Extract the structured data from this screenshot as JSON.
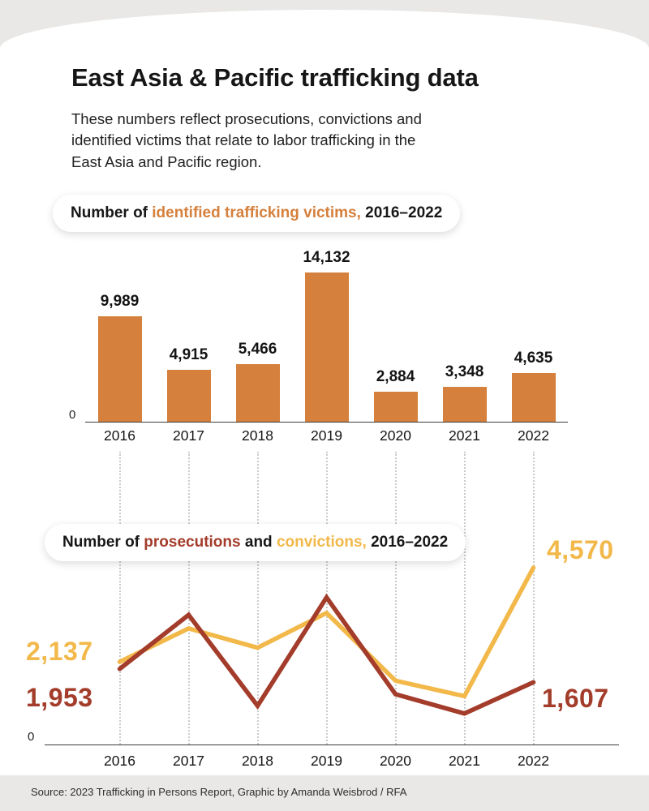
{
  "page": {
    "title": "East Asia & Pacific trafficking data",
    "subtitle_lines": [
      "These numbers reflect prosecutions, convictions and",
      "identified victims that relate to labor trafficking in the",
      "East Asia and Pacific region."
    ],
    "footer": "Source: 2023 Trafficking in Persons Report, Graphic by Amanda Weisbrod / RFA"
  },
  "colors": {
    "background_gray": "#e9e8e6",
    "card_white": "#ffffff",
    "bar_orange": "#d5803c",
    "prosecutions_red": "#a33c2a",
    "convictions_yellow": "#f2b84a",
    "dotted_gridline": "#cbcbcb",
    "text_dark": "#161616"
  },
  "bar_chart_heading": {
    "prefix": "Number of ",
    "highlight": "identified trafficking victims,",
    "suffix": " 2016–2022"
  },
  "line_chart_heading": {
    "prefix": "Number of ",
    "highlight_prosecutions": "prosecutions",
    "middle": " and ",
    "highlight_convictions": "convictions,",
    "suffix": " 2016–2022"
  },
  "chart_data": [
    {
      "type": "bar",
      "title": "Number of identified trafficking victims, 2016–2022",
      "categories": [
        "2016",
        "2017",
        "2018",
        "2019",
        "2020",
        "2021",
        "2022"
      ],
      "values": [
        9989,
        4915,
        5466,
        14132,
        2884,
        3348,
        4635
      ],
      "value_labels": [
        "9,989",
        "4,915",
        "5,466",
        "14,132",
        "2,884",
        "3,348",
        "4,635"
      ],
      "bar_color": "#d5803c",
      "y_baseline_label": "0",
      "ylim": [
        0,
        14700
      ],
      "grid": false,
      "legend": "none"
    },
    {
      "type": "line",
      "title": "Number of prosecutions and convictions, 2016–2022",
      "x": [
        "2016",
        "2017",
        "2018",
        "2019",
        "2020",
        "2021",
        "2022"
      ],
      "series": [
        {
          "name": "convictions",
          "color": "#f2b84a",
          "values": [
            2137,
            3000,
            2500,
            3400,
            1650,
            1250,
            4570
          ],
          "first_label": "2,137",
          "last_label": "4,570"
        },
        {
          "name": "prosecutions",
          "color": "#a33c2a",
          "values": [
            1953,
            3350,
            1000,
            3800,
            1300,
            800,
            1607
          ],
          "first_label": "1,953",
          "last_label": "1,607"
        }
      ],
      "y_baseline_label": "0",
      "ylim": [
        0,
        5450
      ],
      "grid": "vertical-dotted",
      "labeled_points": "first and last only"
    }
  ]
}
